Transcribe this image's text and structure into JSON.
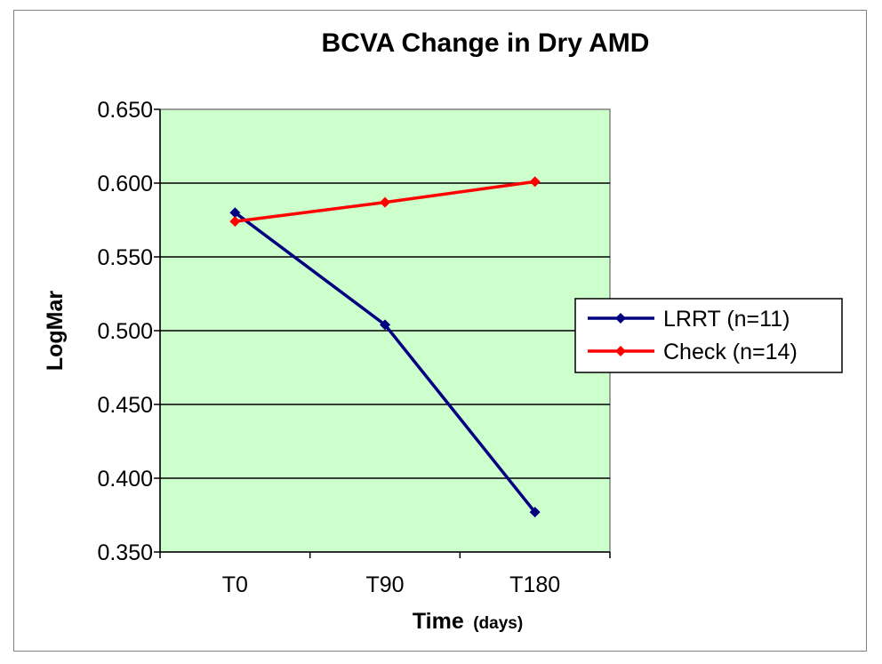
{
  "chart_data": {
    "type": "line",
    "title": "BCVA Change in Dry AMD",
    "xlabel": "Time",
    "xlabel_unit": "(days)",
    "ylabel": "LogMar",
    "categories": [
      "T0",
      "T90",
      "T180"
    ],
    "ylim": [
      0.35,
      0.65
    ],
    "yticks": [
      "0.650",
      "0.600",
      "0.550",
      "0.500",
      "0.450",
      "0.400",
      "0.350"
    ],
    "grid": true,
    "legend_position": "right",
    "plot_background": "#ccffcc",
    "series": [
      {
        "name": "LRRT (n=11)",
        "color": "#000080",
        "values": [
          0.58,
          0.504,
          0.377
        ]
      },
      {
        "name": "Check (n=14)",
        "color": "#ff0000",
        "values": [
          0.574,
          0.587,
          0.601
        ]
      }
    ]
  }
}
